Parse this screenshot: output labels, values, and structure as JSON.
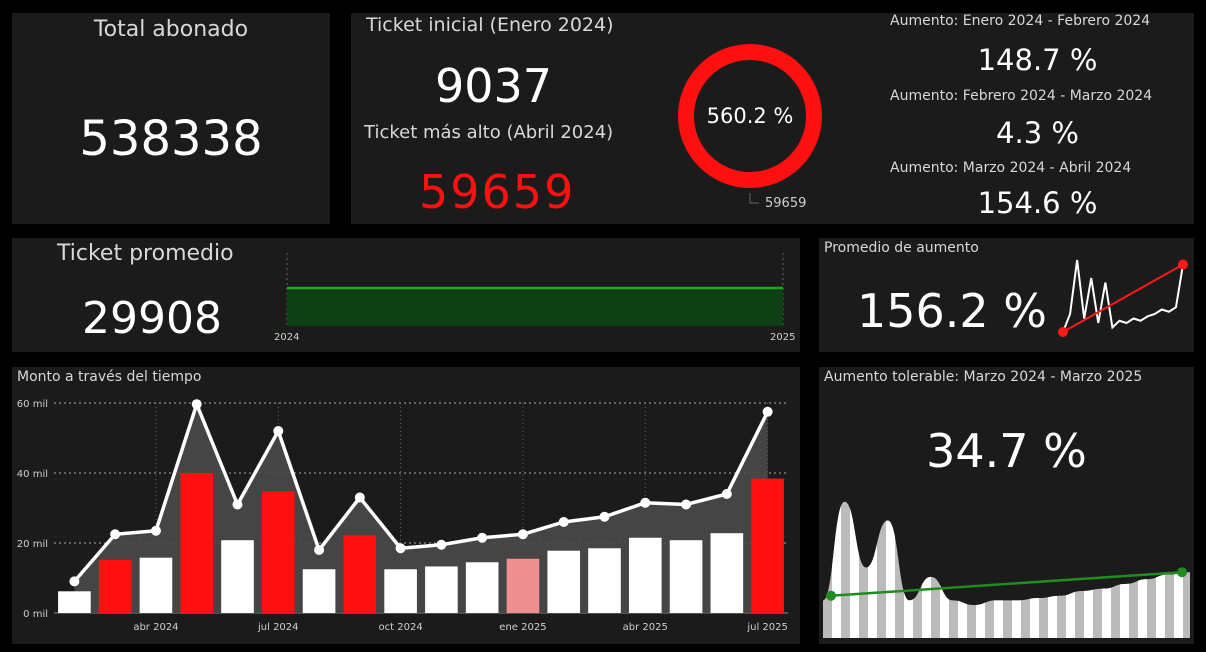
{
  "colors": {
    "background": "#000000",
    "card": "#1b1b1b",
    "accent_red": "#ff1010",
    "highlight_pink": "#f08f8f",
    "trend_green": "#1e8c1e",
    "bar_white": "#ffffff",
    "area_gray": "#4a4a4a"
  },
  "total_abonado": {
    "title": "Total abonado",
    "value": "538338"
  },
  "ticket": {
    "initial_title": "Ticket inicial (Enero 2024)",
    "initial_value": "9037",
    "highest_title": "Ticket más alto (Abril 2024)",
    "highest_value": "59659",
    "donut_label": "560.2 %",
    "donut_callout": "59659"
  },
  "increases": [
    {
      "label": "Aumento: Enero 2024 - Febrero 2024",
      "value": "148.7 %"
    },
    {
      "label": "Aumento: Febrero 2024 - Marzo 2024",
      "value": "4.3 %"
    },
    {
      "label": "Aumento: Marzo 2024 - Abril 2024",
      "value": "154.6 %"
    }
  ],
  "ticket_promedio": {
    "title": "Ticket promedio",
    "value": "29908",
    "axis_start": "2024",
    "axis_end": "2025"
  },
  "promedio_aumento": {
    "title": "Promedio de aumento",
    "value": "156.2 %"
  },
  "monto": {
    "title": "Monto a través del tiempo",
    "y_ticks": [
      "0 mil",
      "20 mil",
      "40 mil",
      "60 mil"
    ],
    "x_ticks": [
      "abr 2024",
      "jul 2024",
      "oct 2024",
      "ene 2025",
      "abr 2025",
      "jul 2025"
    ]
  },
  "aumento_tolerable": {
    "title": "Aumento tolerable: Marzo 2024 - Marzo 2025",
    "value": "34.7 %"
  },
  "chart_data": [
    {
      "type": "bar",
      "title": "Monto a través del tiempo",
      "ylim": [
        0,
        60000
      ],
      "y_ticks": [
        "0 mil",
        "20 mil",
        "40 mil",
        "60 mil"
      ],
      "x_ticks": [
        "abr 2024",
        "jul 2024",
        "oct 2024",
        "ene 2025",
        "abr 2025",
        "jul 2025"
      ],
      "grid": true,
      "bars": [
        6200,
        15200,
        15800,
        40000,
        20800,
        34800,
        12500,
        22200,
        12500,
        13300,
        14500,
        15500,
        17800,
        18500,
        21500,
        20800,
        22800,
        38400
      ],
      "bar_colors": [
        "#ffffff",
        "#ff1010",
        "#ffffff",
        "#ff1010",
        "#ffffff",
        "#ff1010",
        "#ffffff",
        "#ff1010",
        "#ffffff",
        "#ffffff",
        "#ffffff",
        "#f08f8f",
        "#ffffff",
        "#ffffff",
        "#ffffff",
        "#ffffff",
        "#ffffff",
        "#ff1010"
      ],
      "line": [
        9037,
        22500,
        23500,
        59659,
        31000,
        52000,
        18000,
        33000,
        18500,
        19500,
        21500,
        22500,
        26000,
        27500,
        31500,
        31000,
        34000,
        57500
      ]
    },
    {
      "type": "area",
      "title": "Ticket promedio",
      "x": [
        "2024",
        "2025"
      ],
      "values": [
        29908,
        29908
      ]
    },
    {
      "type": "line",
      "title": "Promedio de aumento",
      "values": [
        0,
        40,
        160,
        30,
        120,
        20,
        110,
        10,
        25,
        20,
        30,
        25,
        35,
        40,
        50,
        45,
        55,
        150
      ],
      "trend": [
        0,
        150
      ]
    },
    {
      "type": "area",
      "title": "Aumento tolerable: Marzo 2024 - Marzo 2025",
      "values": [
        16,
        58,
        30,
        50,
        16,
        26,
        16,
        14,
        16,
        16,
        17,
        18,
        20,
        21,
        23,
        25,
        27,
        28
      ],
      "trend": [
        18,
        28
      ]
    }
  ]
}
